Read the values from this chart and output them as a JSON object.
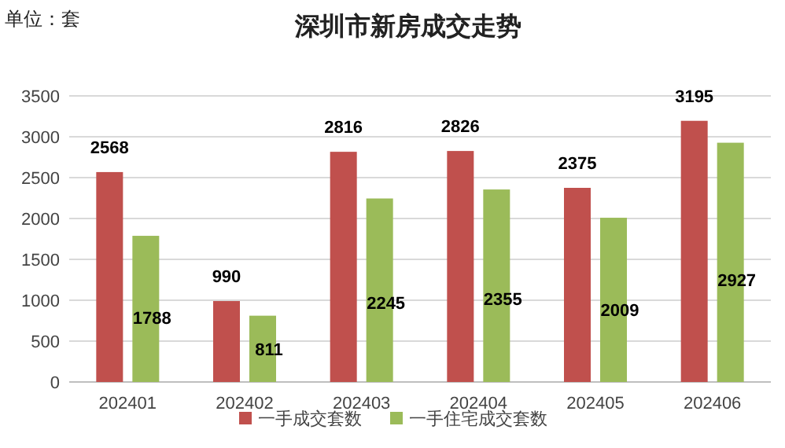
{
  "chart_data": {
    "type": "bar",
    "title": "深圳市新房成交走势",
    "annotations": [
      "单位：套"
    ],
    "categories": [
      "202401",
      "202402",
      "202403",
      "202404",
      "202405",
      "202406"
    ],
    "series": [
      {
        "name": "一手成交套数",
        "color": "#c0504d",
        "values": [
          2568,
          990,
          2816,
          2826,
          2375,
          3195
        ]
      },
      {
        "name": "一手住宅成交套数",
        "color": "#9bbb59",
        "values": [
          1788,
          811,
          2245,
          2355,
          2009,
          2927
        ]
      }
    ],
    "ylim": [
      0,
      3500
    ],
    "yticks": [
      0,
      500,
      1000,
      1500,
      2000,
      2500,
      3000,
      3500
    ],
    "grid": "y",
    "legend": "bottom",
    "data_labels": true
  }
}
